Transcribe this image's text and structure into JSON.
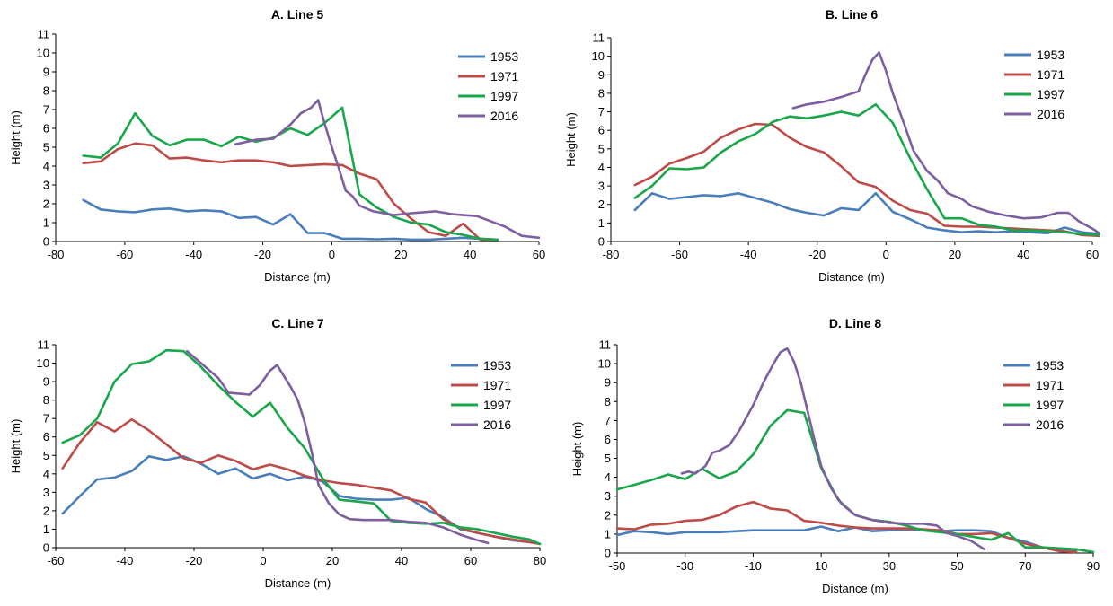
{
  "colors": {
    "1953": "#4a7ebb",
    "1971": "#be4b48",
    "1997": "#1aa64a",
    "2016": "#7d5fa0"
  },
  "chart_data": [
    {
      "type": "line",
      "title": "A. Line 5",
      "xlabel": "Distance (m)",
      "ylabel": "Height (m)",
      "xlim": [
        -80,
        60
      ],
      "ylim": [
        0,
        11
      ],
      "xticks": [
        -80,
        -60,
        -40,
        -20,
        0,
        20,
        40,
        60
      ],
      "yticks": [
        0,
        1,
        2,
        3,
        4,
        5,
        6,
        7,
        8,
        9,
        10,
        11
      ],
      "grid": false,
      "legend_position": "top-right",
      "series": [
        {
          "name": "1953",
          "x": [
            -72,
            -67,
            -62,
            -57,
            -52,
            -47,
            -42,
            -37,
            -32,
            -27,
            -22,
            -17,
            -12,
            -7,
            -2,
            3,
            8,
            13,
            18,
            23,
            28,
            33,
            38,
            43,
            48
          ],
          "y": [
            2.2,
            1.7,
            1.6,
            1.55,
            1.7,
            1.75,
            1.6,
            1.65,
            1.6,
            1.25,
            1.3,
            0.9,
            1.45,
            0.45,
            0.45,
            0.15,
            0.15,
            0.12,
            0.15,
            0.1,
            0.1,
            0.15,
            0.2,
            0.15,
            0.1
          ]
        },
        {
          "name": "1971",
          "x": [
            -72,
            -67,
            -62,
            -57,
            -52,
            -47,
            -42,
            -37,
            -32,
            -27,
            -22,
            -17,
            -12,
            -7,
            -2,
            3,
            8,
            13,
            18,
            23,
            28,
            33,
            38,
            43,
            48
          ],
          "y": [
            4.15,
            4.25,
            4.9,
            5.2,
            5.1,
            4.4,
            4.45,
            4.3,
            4.2,
            4.3,
            4.3,
            4.2,
            4.0,
            4.05,
            4.1,
            4.05,
            3.6,
            3.3,
            2.0,
            1.2,
            0.5,
            0.3,
            0.95,
            0.1,
            0.1
          ]
        },
        {
          "name": "1997",
          "x": [
            -72,
            -67,
            -62,
            -57,
            -52,
            -47,
            -42,
            -37,
            -32,
            -27,
            -22,
            -17,
            -12,
            -7,
            -2,
            3,
            8,
            13,
            18,
            23,
            28,
            33,
            38,
            43,
            48
          ],
          "y": [
            4.55,
            4.45,
            5.2,
            6.8,
            5.6,
            5.1,
            5.4,
            5.4,
            5.05,
            5.55,
            5.3,
            5.5,
            6.0,
            5.65,
            6.3,
            7.1,
            2.5,
            1.8,
            1.3,
            1.0,
            0.9,
            0.5,
            0.35,
            0.15,
            0.1
          ]
        },
        {
          "name": "2016",
          "x": [
            -28,
            -22,
            -17,
            -12,
            -9,
            -6,
            -4,
            -2,
            0,
            2,
            4,
            6,
            8,
            12,
            18,
            23,
            30,
            35,
            38,
            42,
            50,
            55,
            60
          ],
          "y": [
            5.15,
            5.4,
            5.45,
            6.2,
            6.8,
            7.1,
            7.5,
            6.2,
            5.0,
            3.9,
            2.7,
            2.4,
            1.9,
            1.6,
            1.4,
            1.5,
            1.6,
            1.45,
            1.4,
            1.35,
            0.8,
            0.3,
            0.2
          ]
        }
      ]
    },
    {
      "type": "line",
      "title": "B. Line 6",
      "xlabel": "Distance (m)",
      "ylabel": "Height (m)",
      "xlim": [
        -80,
        60
      ],
      "ylim": [
        0,
        11
      ],
      "xticks": [
        -80,
        -60,
        -40,
        -20,
        0,
        20,
        40,
        60
      ],
      "yticks": [
        0,
        1,
        2,
        3,
        4,
        5,
        6,
        7,
        8,
        9,
        10,
        11
      ],
      "grid": false,
      "legend_position": "top-right",
      "series": [
        {
          "name": "1953",
          "x": [
            -73,
            -68,
            -63,
            -58,
            -53,
            -48,
            -43,
            -38,
            -33,
            -28,
            -23,
            -18,
            -13,
            -8,
            -3,
            2,
            7,
            12,
            17,
            22,
            27,
            32,
            37,
            42,
            47,
            52,
            57,
            62
          ],
          "y": [
            1.7,
            2.6,
            2.3,
            2.4,
            2.5,
            2.45,
            2.6,
            2.35,
            2.1,
            1.75,
            1.55,
            1.4,
            1.8,
            1.7,
            2.6,
            1.6,
            1.2,
            0.75,
            0.6,
            0.5,
            0.55,
            0.5,
            0.55,
            0.5,
            0.45,
            0.75,
            0.5,
            0.4
          ]
        },
        {
          "name": "1971",
          "x": [
            -73,
            -68,
            -63,
            -58,
            -53,
            -48,
            -43,
            -38,
            -33,
            -28,
            -23,
            -18,
            -13,
            -8,
            -3,
            2,
            7,
            12,
            17,
            22,
            27,
            32,
            37,
            42,
            47,
            52,
            57,
            62
          ],
          "y": [
            3.05,
            3.5,
            4.2,
            4.5,
            4.85,
            5.6,
            6.05,
            6.35,
            6.3,
            5.6,
            5.1,
            4.8,
            4.05,
            3.2,
            2.95,
            2.2,
            1.7,
            1.5,
            0.85,
            0.8,
            0.8,
            0.75,
            0.7,
            0.65,
            0.6,
            0.55,
            0.35,
            0.3
          ]
        },
        {
          "name": "1997",
          "x": [
            -73,
            -68,
            -63,
            -58,
            -53,
            -48,
            -43,
            -38,
            -33,
            -28,
            -23,
            -18,
            -13,
            -8,
            -3,
            2,
            7,
            12,
            17,
            22,
            27,
            32,
            37,
            42,
            47,
            52,
            57,
            62
          ],
          "y": [
            2.35,
            3.0,
            3.95,
            3.9,
            4.0,
            4.8,
            5.4,
            5.8,
            6.45,
            6.75,
            6.65,
            6.8,
            7.0,
            6.8,
            7.4,
            6.4,
            4.5,
            2.8,
            1.25,
            1.25,
            0.9,
            0.8,
            0.6,
            0.6,
            0.55,
            0.5,
            0.4,
            0.35
          ]
        },
        {
          "name": "2016",
          "x": [
            -27,
            -23,
            -18,
            -13,
            -8,
            -6,
            -4,
            -2,
            0,
            2,
            5,
            8,
            12,
            15,
            18,
            22,
            25,
            30,
            35,
            40,
            45,
            50,
            53,
            56,
            60,
            62
          ],
          "y": [
            7.2,
            7.4,
            7.55,
            7.8,
            8.1,
            9.0,
            9.8,
            10.2,
            9.2,
            8.0,
            6.5,
            4.9,
            3.8,
            3.3,
            2.6,
            2.3,
            1.9,
            1.6,
            1.4,
            1.25,
            1.3,
            1.55,
            1.55,
            1.1,
            0.7,
            0.45
          ]
        }
      ]
    },
    {
      "type": "line",
      "title": "C. Line 7",
      "xlabel": "Distance (m)",
      "ylabel": "Height (m)",
      "xlim": [
        -60,
        80
      ],
      "ylim": [
        0,
        11
      ],
      "xticks": [
        -60,
        -40,
        -20,
        0,
        20,
        40,
        60,
        80
      ],
      "yticks": [
        0,
        1,
        2,
        3,
        4,
        5,
        6,
        7,
        8,
        9,
        10,
        11
      ],
      "grid": false,
      "legend_position": "top-right",
      "series": [
        {
          "name": "1953",
          "x": [
            -58,
            -53,
            -48,
            -43,
            -38,
            -33,
            -28,
            -23,
            -18,
            -13,
            -8,
            -3,
            2,
            7,
            12,
            17,
            22,
            27,
            32,
            37,
            42,
            47,
            52,
            57,
            62,
            67,
            72,
            77,
            80
          ],
          "y": [
            1.85,
            2.8,
            3.7,
            3.8,
            4.15,
            4.95,
            4.75,
            4.95,
            4.55,
            4.0,
            4.3,
            3.75,
            4.0,
            3.65,
            3.85,
            3.6,
            2.8,
            2.65,
            2.6,
            2.6,
            2.7,
            2.1,
            1.65,
            1.0,
            0.8,
            0.6,
            0.4,
            0.3,
            0.2
          ]
        },
        {
          "name": "1971",
          "x": [
            -58,
            -53,
            -48,
            -43,
            -38,
            -33,
            -28,
            -23,
            -18,
            -13,
            -8,
            -3,
            2,
            7,
            12,
            17,
            22,
            27,
            32,
            37,
            42,
            47,
            52,
            57,
            62,
            67,
            72,
            77,
            80
          ],
          "y": [
            4.3,
            5.7,
            6.8,
            6.3,
            6.95,
            6.35,
            5.6,
            4.85,
            4.6,
            5.0,
            4.7,
            4.25,
            4.5,
            4.25,
            3.9,
            3.65,
            3.5,
            3.4,
            3.25,
            3.1,
            2.65,
            2.45,
            1.55,
            1.05,
            0.8,
            0.6,
            0.45,
            0.3,
            0.2
          ]
        },
        {
          "name": "1997",
          "x": [
            -58,
            -53,
            -48,
            -43,
            -38,
            -33,
            -28,
            -23,
            -18,
            -13,
            -8,
            -3,
            2,
            7,
            12,
            17,
            22,
            27,
            32,
            37,
            42,
            47,
            52,
            57,
            62,
            67,
            72,
            77,
            80
          ],
          "y": [
            5.7,
            6.1,
            7.0,
            9.0,
            9.95,
            10.1,
            10.7,
            10.65,
            9.8,
            8.8,
            7.9,
            7.1,
            7.85,
            6.5,
            5.4,
            3.8,
            2.6,
            2.5,
            2.4,
            1.45,
            1.35,
            1.3,
            1.35,
            1.1,
            1.0,
            0.8,
            0.6,
            0.45,
            0.2
          ]
        },
        {
          "name": "2016",
          "x": [
            -22,
            -18,
            -13,
            -10,
            -7,
            -4,
            -1,
            2,
            4,
            6,
            8,
            10,
            12,
            14,
            16,
            19,
            22,
            25,
            29,
            33,
            37,
            42,
            47,
            52,
            57,
            62,
            65
          ],
          "y": [
            10.65,
            10.0,
            9.2,
            8.4,
            8.35,
            8.3,
            8.8,
            9.6,
            9.9,
            9.3,
            8.7,
            8.0,
            6.8,
            5.2,
            3.4,
            2.4,
            1.8,
            1.55,
            1.5,
            1.5,
            1.5,
            1.4,
            1.35,
            1.1,
            0.7,
            0.4,
            0.25
          ]
        }
      ]
    },
    {
      "type": "line",
      "title": "D. Line 8",
      "xlabel": "Distance (m)",
      "ylabel": "Height (m)",
      "xlim": [
        -50,
        90
      ],
      "ylim": [
        0,
        11
      ],
      "xticks": [
        -50,
        -30,
        -10,
        10,
        30,
        50,
        70,
        90
      ],
      "yticks": [
        0,
        1,
        2,
        3,
        4,
        5,
        6,
        7,
        8,
        9,
        10,
        11
      ],
      "grid": false,
      "legend_position": "top-right",
      "series": [
        {
          "name": "1953",
          "x": [
            -50,
            -45,
            -40,
            -35,
            -30,
            -25,
            -20,
            -15,
            -10,
            -5,
            0,
            5,
            10,
            15,
            20,
            25,
            30,
            35,
            40,
            45,
            50,
            55,
            60,
            65,
            70,
            75,
            80,
            85
          ],
          "y": [
            0.95,
            1.15,
            1.1,
            1.0,
            1.1,
            1.1,
            1.1,
            1.15,
            1.2,
            1.2,
            1.2,
            1.2,
            1.4,
            1.15,
            1.35,
            1.15,
            1.2,
            1.25,
            1.2,
            1.15,
            1.2,
            1.2,
            1.15,
            0.8,
            0.6,
            0.3,
            0.2,
            0.1
          ]
        },
        {
          "name": "1971",
          "x": [
            -50,
            -45,
            -40,
            -35,
            -30,
            -25,
            -20,
            -15,
            -10,
            -5,
            0,
            5,
            10,
            15,
            20,
            25,
            30,
            35,
            40,
            45,
            50,
            55,
            60,
            65,
            70,
            75,
            80,
            85
          ],
          "y": [
            1.3,
            1.25,
            1.5,
            1.55,
            1.7,
            1.75,
            2.0,
            2.45,
            2.7,
            2.35,
            2.25,
            1.7,
            1.6,
            1.45,
            1.35,
            1.3,
            1.3,
            1.3,
            1.25,
            1.2,
            1.0,
            1.0,
            1.05,
            0.8,
            0.5,
            0.3,
            0.1,
            0.05
          ]
        },
        {
          "name": "1997",
          "x": [
            -50,
            -45,
            -40,
            -35,
            -30,
            -25,
            -20,
            -15,
            -10,
            -5,
            0,
            5,
            10,
            15,
            20,
            25,
            30,
            35,
            40,
            45,
            50,
            55,
            60,
            65,
            70,
            75,
            80,
            85,
            90
          ],
          "y": [
            3.35,
            3.6,
            3.85,
            4.15,
            3.9,
            4.45,
            3.95,
            4.3,
            5.2,
            6.7,
            7.55,
            7.4,
            4.5,
            2.8,
            2.0,
            1.75,
            1.65,
            1.45,
            1.2,
            1.1,
            1.0,
            0.85,
            0.7,
            1.05,
            0.3,
            0.3,
            0.25,
            0.2,
            0.05
          ]
        },
        {
          "name": "2016",
          "x": [
            -31,
            -29,
            -27,
            -24,
            -22,
            -20,
            -17,
            -14,
            -10,
            -7,
            -4,
            -2,
            0,
            2,
            4,
            6,
            8,
            10,
            13,
            16,
            20,
            25,
            30,
            35,
            40,
            44,
            47,
            50,
            54,
            58
          ],
          "y": [
            4.2,
            4.3,
            4.2,
            4.6,
            5.3,
            5.4,
            5.7,
            6.5,
            7.8,
            9.0,
            10.0,
            10.6,
            10.8,
            10.1,
            9.0,
            7.5,
            6.0,
            4.6,
            3.4,
            2.6,
            2.0,
            1.75,
            1.6,
            1.55,
            1.55,
            1.45,
            1.05,
            0.9,
            0.65,
            0.2
          ]
        }
      ]
    }
  ]
}
